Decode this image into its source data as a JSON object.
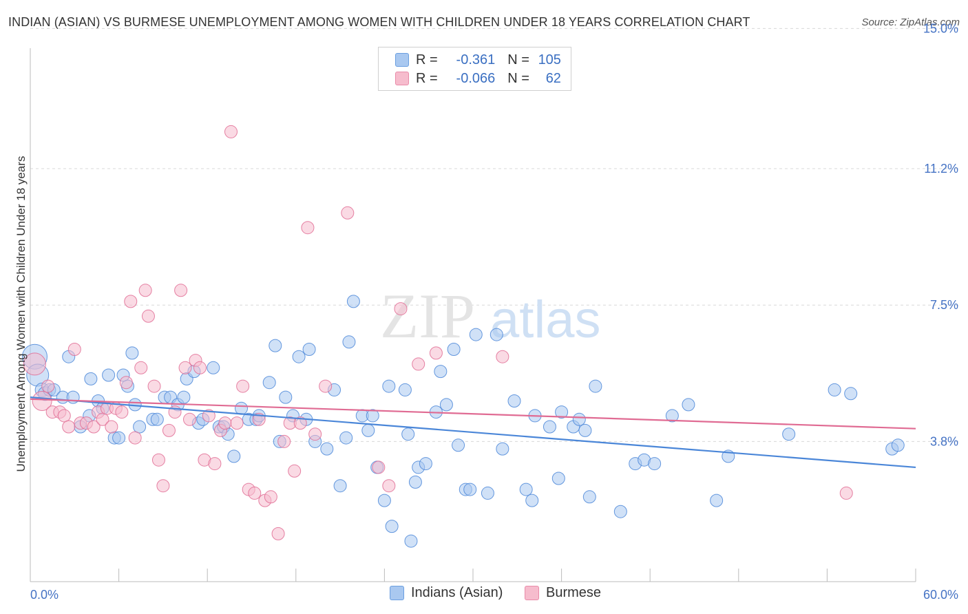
{
  "header": {
    "title": "INDIAN (ASIAN) VS BURMESE UNEMPLOYMENT AMONG WOMEN WITH CHILDREN UNDER 18 YEARS CORRELATION CHART",
    "source": "Source: ZipAtlas.com"
  },
  "watermark": {
    "zip": "ZIP",
    "atlas": "atlas"
  },
  "legend": {
    "rows": [
      {
        "r_label": "R =",
        "r_value": "-0.361",
        "n_label": "N =",
        "n_value": "105",
        "color": "#a9c8f0",
        "border": "#6a9ee0"
      },
      {
        "r_label": "R =",
        "r_value": "-0.066",
        "n_label": "N =",
        "n_value": "62",
        "color": "#f6bccd",
        "border": "#e98aa8"
      }
    ]
  },
  "bottom_legend": [
    "Indians (Asian)",
    "Burmese"
  ],
  "chart_data": {
    "type": "scatter",
    "title": "INDIAN (ASIAN) VS BURMESE UNEMPLOYMENT AMONG WOMEN WITH CHILDREN UNDER 18 YEARS CORRELATION CHART",
    "xlabel": "",
    "ylabel": "Unemployment Among Women with Children Under 18 years",
    "xlim": [
      0,
      60
    ],
    "ylim": [
      0,
      15.4
    ],
    "x_tick_labels": [
      "0.0%",
      "60.0%"
    ],
    "y_ticks": [
      3.8,
      7.5,
      11.2,
      15.0
    ],
    "y_tick_labels": [
      "3.8%",
      "7.5%",
      "11.2%",
      "15.0%"
    ],
    "grid": true,
    "colors": {
      "blue": "#4a86d8",
      "blue_fill": "#a9c8f0",
      "pink": "#e06b93",
      "pink_fill": "#f6bccd"
    },
    "series": [
      {
        "name": "Indians (Asian)",
        "r": -0.361,
        "n": 105,
        "trend": {
          "x0": 0,
          "y0": 5.0,
          "x1": 60,
          "y1": 3.1
        },
        "points": [
          [
            0.3,
            6.1,
            18
          ],
          [
            0.5,
            5.6,
            16
          ],
          [
            0.8,
            5.2,
            10
          ],
          [
            1.0,
            5.1,
            10
          ],
          [
            1.3,
            5.2,
            9
          ],
          [
            1.6,
            5.2,
            9
          ],
          [
            2.2,
            5.0,
            9
          ],
          [
            2.6,
            6.1,
            9
          ],
          [
            2.9,
            5.0,
            9
          ],
          [
            3.4,
            4.2,
            9
          ],
          [
            4.0,
            4.5,
            9
          ],
          [
            4.1,
            5.5,
            9
          ],
          [
            4.6,
            4.9,
            9
          ],
          [
            4.9,
            4.7,
            9
          ],
          [
            5.3,
            5.6,
            9
          ],
          [
            5.7,
            3.9,
            9
          ],
          [
            6.0,
            3.9,
            9
          ],
          [
            6.3,
            5.6,
            9
          ],
          [
            6.6,
            5.3,
            9
          ],
          [
            6.9,
            6.2,
            9
          ],
          [
            7.1,
            4.8,
            9
          ],
          [
            7.4,
            4.2,
            9
          ],
          [
            8.3,
            4.4,
            9
          ],
          [
            8.6,
            4.4,
            9
          ],
          [
            9.1,
            5.0,
            9
          ],
          [
            9.5,
            5.0,
            9
          ],
          [
            10.0,
            4.8,
            9
          ],
          [
            10.4,
            5.0,
            9
          ],
          [
            10.6,
            5.5,
            9
          ],
          [
            11.1,
            5.7,
            9
          ],
          [
            11.4,
            4.3,
            9
          ],
          [
            11.7,
            4.4,
            9
          ],
          [
            12.4,
            5.8,
            9
          ],
          [
            12.8,
            4.2,
            9
          ],
          [
            13.1,
            4.2,
            9
          ],
          [
            13.4,
            4.0,
            9
          ],
          [
            13.8,
            3.4,
            9
          ],
          [
            14.3,
            4.7,
            9
          ],
          [
            14.8,
            4.4,
            9
          ],
          [
            15.3,
            4.4,
            9
          ],
          [
            15.5,
            4.5,
            9
          ],
          [
            16.2,
            5.4,
            9
          ],
          [
            16.6,
            6.4,
            9
          ],
          [
            16.9,
            3.8,
            9
          ],
          [
            17.3,
            5.0,
            9
          ],
          [
            17.8,
            4.5,
            9
          ],
          [
            18.2,
            6.1,
            9
          ],
          [
            18.7,
            4.4,
            9
          ],
          [
            18.9,
            6.3,
            9
          ],
          [
            19.3,
            3.8,
            9
          ],
          [
            20.1,
            3.6,
            9
          ],
          [
            20.6,
            5.2,
            9
          ],
          [
            21.0,
            2.6,
            9
          ],
          [
            21.4,
            3.9,
            9
          ],
          [
            21.6,
            6.5,
            9
          ],
          [
            21.9,
            7.6,
            9
          ],
          [
            22.5,
            4.5,
            9
          ],
          [
            22.9,
            4.1,
            9
          ],
          [
            23.2,
            4.5,
            9
          ],
          [
            23.5,
            3.1,
            9
          ],
          [
            24.0,
            2.2,
            9
          ],
          [
            24.3,
            5.3,
            9
          ],
          [
            24.5,
            1.5,
            9
          ],
          [
            25.4,
            5.2,
            9
          ],
          [
            25.6,
            4.0,
            9
          ],
          [
            25.8,
            1.1,
            9
          ],
          [
            26.1,
            2.7,
            9
          ],
          [
            26.3,
            3.1,
            9
          ],
          [
            26.8,
            3.2,
            9
          ],
          [
            27.5,
            4.6,
            9
          ],
          [
            27.8,
            5.7,
            9
          ],
          [
            28.2,
            4.8,
            9
          ],
          [
            28.7,
            6.3,
            9
          ],
          [
            29.0,
            3.7,
            9
          ],
          [
            29.5,
            2.5,
            9
          ],
          [
            29.8,
            2.5,
            9
          ],
          [
            30.2,
            6.7,
            9
          ],
          [
            31.0,
            2.4,
            9
          ],
          [
            31.6,
            6.7,
            9
          ],
          [
            32.0,
            3.6,
            9
          ],
          [
            32.8,
            4.9,
            9
          ],
          [
            33.6,
            2.5,
            9
          ],
          [
            34.0,
            2.2,
            9
          ],
          [
            34.2,
            4.5,
            9
          ],
          [
            35.2,
            4.2,
            9
          ],
          [
            35.8,
            2.8,
            9
          ],
          [
            36.0,
            4.6,
            9
          ],
          [
            36.8,
            4.2,
            9
          ],
          [
            37.2,
            4.4,
            9
          ],
          [
            37.6,
            4.1,
            9
          ],
          [
            37.9,
            2.3,
            9
          ],
          [
            38.3,
            5.3,
            9
          ],
          [
            40.0,
            1.9,
            9
          ],
          [
            41.0,
            3.2,
            9
          ],
          [
            41.6,
            3.3,
            9
          ],
          [
            42.3,
            3.2,
            9
          ],
          [
            43.5,
            4.5,
            9
          ],
          [
            44.6,
            4.8,
            9
          ],
          [
            46.5,
            2.2,
            9
          ],
          [
            47.3,
            3.4,
            9
          ],
          [
            51.4,
            4.0,
            9
          ],
          [
            54.5,
            5.2,
            9
          ],
          [
            55.6,
            5.1,
            9
          ],
          [
            58.4,
            3.6,
            9
          ],
          [
            58.8,
            3.7,
            9
          ]
        ]
      },
      {
        "name": "Burmese",
        "r": -0.066,
        "n": 62,
        "trend": {
          "x0": 0,
          "y0": 4.95,
          "x1": 60,
          "y1": 4.15
        },
        "points": [
          [
            0.3,
            5.9,
            16
          ],
          [
            0.8,
            4.9,
            14
          ],
          [
            1.2,
            5.3,
            9
          ],
          [
            1.5,
            4.6,
            9
          ],
          [
            2.0,
            4.6,
            9
          ],
          [
            2.3,
            4.5,
            9
          ],
          [
            2.6,
            4.2,
            9
          ],
          [
            3.0,
            6.3,
            9
          ],
          [
            3.4,
            4.3,
            9
          ],
          [
            3.8,
            4.3,
            9
          ],
          [
            4.3,
            4.2,
            9
          ],
          [
            4.6,
            4.6,
            9
          ],
          [
            4.9,
            4.4,
            9
          ],
          [
            5.2,
            4.7,
            9
          ],
          [
            5.5,
            4.2,
            9
          ],
          [
            5.8,
            4.7,
            9
          ],
          [
            6.2,
            4.6,
            9
          ],
          [
            6.5,
            5.4,
            9
          ],
          [
            6.8,
            7.6,
            9
          ],
          [
            7.1,
            3.9,
            9
          ],
          [
            7.5,
            5.8,
            9
          ],
          [
            7.8,
            7.9,
            9
          ],
          [
            8.0,
            7.2,
            9
          ],
          [
            8.4,
            5.3,
            9
          ],
          [
            8.7,
            3.3,
            9
          ],
          [
            9.0,
            2.6,
            9
          ],
          [
            9.4,
            4.1,
            9
          ],
          [
            9.8,
            4.6,
            9
          ],
          [
            10.2,
            7.9,
            9
          ],
          [
            10.5,
            5.8,
            9
          ],
          [
            10.8,
            4.4,
            9
          ],
          [
            11.2,
            6.0,
            9
          ],
          [
            11.5,
            5.8,
            9
          ],
          [
            11.8,
            3.3,
            9
          ],
          [
            12.1,
            4.5,
            9
          ],
          [
            12.5,
            3.2,
            9
          ],
          [
            12.9,
            4.1,
            9
          ],
          [
            13.2,
            4.3,
            9
          ],
          [
            13.6,
            12.2,
            9
          ],
          [
            14.0,
            4.3,
            9
          ],
          [
            14.4,
            5.3,
            9
          ],
          [
            14.8,
            2.5,
            9
          ],
          [
            15.2,
            2.4,
            9
          ],
          [
            15.5,
            4.4,
            9
          ],
          [
            15.9,
            2.2,
            9
          ],
          [
            16.3,
            2.3,
            9
          ],
          [
            16.8,
            1.3,
            9
          ],
          [
            17.2,
            3.8,
            9
          ],
          [
            17.6,
            4.3,
            9
          ],
          [
            17.9,
            3.0,
            9
          ],
          [
            18.3,
            4.3,
            9
          ],
          [
            18.8,
            9.6,
            9
          ],
          [
            19.3,
            4.0,
            9
          ],
          [
            20.0,
            5.3,
            9
          ],
          [
            21.5,
            10.0,
            9
          ],
          [
            23.6,
            3.1,
            9
          ],
          [
            24.3,
            2.6,
            9
          ],
          [
            25.1,
            7.4,
            9
          ],
          [
            26.3,
            5.9,
            9
          ],
          [
            27.5,
            6.2,
            9
          ],
          [
            32.0,
            6.1,
            9
          ],
          [
            55.3,
            2.4,
            9
          ]
        ]
      }
    ]
  }
}
